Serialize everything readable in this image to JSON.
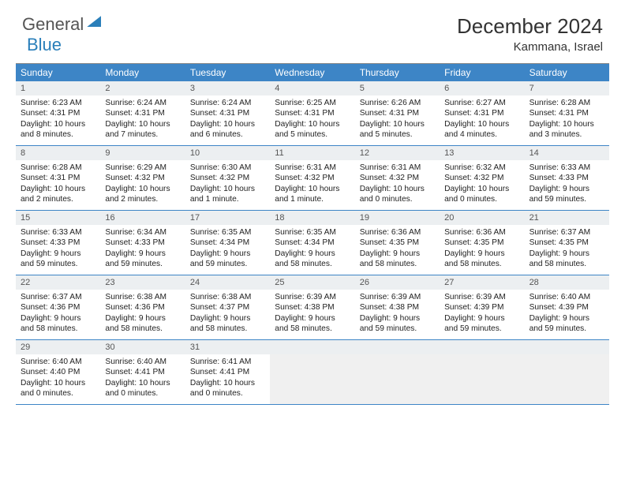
{
  "logo": {
    "part1": "General",
    "part2": "Blue"
  },
  "title": "December 2024",
  "location": "Kammana, Israel",
  "weekdays": [
    "Sunday",
    "Monday",
    "Tuesday",
    "Wednesday",
    "Thursday",
    "Friday",
    "Saturday"
  ],
  "colors": {
    "header_bg": "#3d85c6",
    "header_fg": "#ffffff",
    "daynum_bg": "#eceff1",
    "border": "#3d85c6",
    "text": "#222222",
    "logo_blue": "#2a7fba",
    "logo_gray": "#555555"
  },
  "fonts": {
    "title_size_pt": 20,
    "location_size_pt": 11,
    "weekday_size_pt": 9,
    "daynum_size_pt": 8,
    "body_size_pt": 7.5
  },
  "grid": {
    "cols": 7,
    "rows": 5
  },
  "days": [
    {
      "n": 1,
      "sunrise": "6:23 AM",
      "sunset": "4:31 PM",
      "daylight": "10 hours and 8 minutes."
    },
    {
      "n": 2,
      "sunrise": "6:24 AM",
      "sunset": "4:31 PM",
      "daylight": "10 hours and 7 minutes."
    },
    {
      "n": 3,
      "sunrise": "6:24 AM",
      "sunset": "4:31 PM",
      "daylight": "10 hours and 6 minutes."
    },
    {
      "n": 4,
      "sunrise": "6:25 AM",
      "sunset": "4:31 PM",
      "daylight": "10 hours and 5 minutes."
    },
    {
      "n": 5,
      "sunrise": "6:26 AM",
      "sunset": "4:31 PM",
      "daylight": "10 hours and 5 minutes."
    },
    {
      "n": 6,
      "sunrise": "6:27 AM",
      "sunset": "4:31 PM",
      "daylight": "10 hours and 4 minutes."
    },
    {
      "n": 7,
      "sunrise": "6:28 AM",
      "sunset": "4:31 PM",
      "daylight": "10 hours and 3 minutes."
    },
    {
      "n": 8,
      "sunrise": "6:28 AM",
      "sunset": "4:31 PM",
      "daylight": "10 hours and 2 minutes."
    },
    {
      "n": 9,
      "sunrise": "6:29 AM",
      "sunset": "4:32 PM",
      "daylight": "10 hours and 2 minutes."
    },
    {
      "n": 10,
      "sunrise": "6:30 AM",
      "sunset": "4:32 PM",
      "daylight": "10 hours and 1 minute."
    },
    {
      "n": 11,
      "sunrise": "6:31 AM",
      "sunset": "4:32 PM",
      "daylight": "10 hours and 1 minute."
    },
    {
      "n": 12,
      "sunrise": "6:31 AM",
      "sunset": "4:32 PM",
      "daylight": "10 hours and 0 minutes."
    },
    {
      "n": 13,
      "sunrise": "6:32 AM",
      "sunset": "4:32 PM",
      "daylight": "10 hours and 0 minutes."
    },
    {
      "n": 14,
      "sunrise": "6:33 AM",
      "sunset": "4:33 PM",
      "daylight": "9 hours and 59 minutes."
    },
    {
      "n": 15,
      "sunrise": "6:33 AM",
      "sunset": "4:33 PM",
      "daylight": "9 hours and 59 minutes."
    },
    {
      "n": 16,
      "sunrise": "6:34 AM",
      "sunset": "4:33 PM",
      "daylight": "9 hours and 59 minutes."
    },
    {
      "n": 17,
      "sunrise": "6:35 AM",
      "sunset": "4:34 PM",
      "daylight": "9 hours and 59 minutes."
    },
    {
      "n": 18,
      "sunrise": "6:35 AM",
      "sunset": "4:34 PM",
      "daylight": "9 hours and 58 minutes."
    },
    {
      "n": 19,
      "sunrise": "6:36 AM",
      "sunset": "4:35 PM",
      "daylight": "9 hours and 58 minutes."
    },
    {
      "n": 20,
      "sunrise": "6:36 AM",
      "sunset": "4:35 PM",
      "daylight": "9 hours and 58 minutes."
    },
    {
      "n": 21,
      "sunrise": "6:37 AM",
      "sunset": "4:35 PM",
      "daylight": "9 hours and 58 minutes."
    },
    {
      "n": 22,
      "sunrise": "6:37 AM",
      "sunset": "4:36 PM",
      "daylight": "9 hours and 58 minutes."
    },
    {
      "n": 23,
      "sunrise": "6:38 AM",
      "sunset": "4:36 PM",
      "daylight": "9 hours and 58 minutes."
    },
    {
      "n": 24,
      "sunrise": "6:38 AM",
      "sunset": "4:37 PM",
      "daylight": "9 hours and 58 minutes."
    },
    {
      "n": 25,
      "sunrise": "6:39 AM",
      "sunset": "4:38 PM",
      "daylight": "9 hours and 58 minutes."
    },
    {
      "n": 26,
      "sunrise": "6:39 AM",
      "sunset": "4:38 PM",
      "daylight": "9 hours and 59 minutes."
    },
    {
      "n": 27,
      "sunrise": "6:39 AM",
      "sunset": "4:39 PM",
      "daylight": "9 hours and 59 minutes."
    },
    {
      "n": 28,
      "sunrise": "6:40 AM",
      "sunset": "4:39 PM",
      "daylight": "9 hours and 59 minutes."
    },
    {
      "n": 29,
      "sunrise": "6:40 AM",
      "sunset": "4:40 PM",
      "daylight": "10 hours and 0 minutes."
    },
    {
      "n": 30,
      "sunrise": "6:40 AM",
      "sunset": "4:41 PM",
      "daylight": "10 hours and 0 minutes."
    },
    {
      "n": 31,
      "sunrise": "6:41 AM",
      "sunset": "4:41 PM",
      "daylight": "10 hours and 0 minutes."
    }
  ],
  "labels": {
    "sunrise": "Sunrise:",
    "sunset": "Sunset:",
    "daylight": "Daylight:"
  }
}
